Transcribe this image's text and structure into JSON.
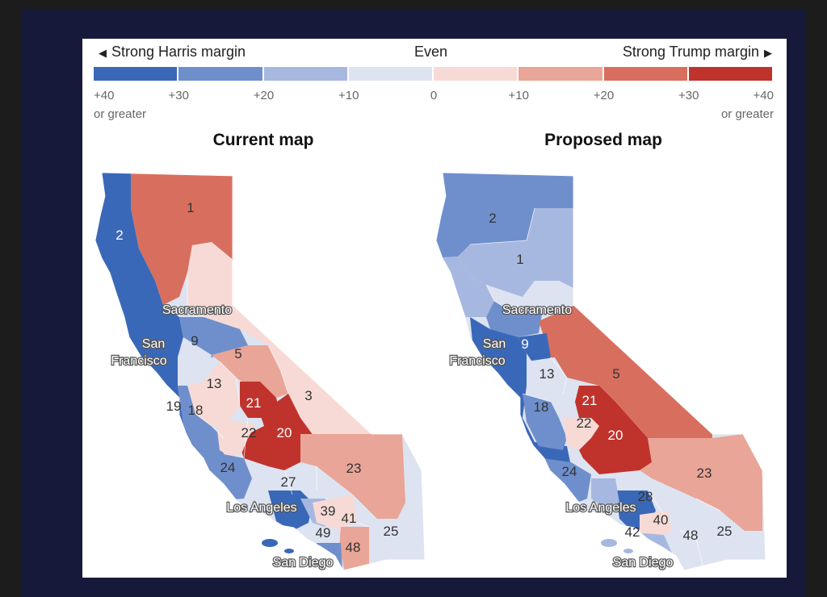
{
  "legend": {
    "left_label": "Strong Harris margin",
    "center_label": "Even",
    "right_label": "Strong Trump margin",
    "left_arrow_icon": "triangle-left-icon",
    "right_arrow_icon": "triangle-right-icon",
    "colors": [
      "#3a68b8",
      "#6f8fcc",
      "#a7b8e0",
      "#dde3f1",
      "#f7dad5",
      "#e9a597",
      "#d86f5e",
      "#c0332c"
    ],
    "ticks": [
      "+40",
      "+30",
      "+20",
      "+10",
      "0",
      "+10",
      "+20",
      "+30",
      "+40"
    ],
    "left_sub": "or greater",
    "right_sub": "or greater"
  },
  "current_map": {
    "title": "Current map",
    "cities": [
      "Sacramento",
      "San",
      "Francisco",
      "Los Angeles",
      "San Diego"
    ],
    "districts": [
      "1",
      "2",
      "3",
      "5",
      "9",
      "13",
      "18",
      "19",
      "20",
      "21",
      "22",
      "23",
      "24",
      "25",
      "27",
      "39",
      "41",
      "48",
      "49"
    ]
  },
  "proposed_map": {
    "title": "Proposed map",
    "cities": [
      "Sacramento",
      "San",
      "Francisco",
      "Los Angeles",
      "San Diego"
    ],
    "districts": [
      "1",
      "2",
      "5",
      "9",
      "13",
      "18",
      "20",
      "21",
      "22",
      "23",
      "24",
      "25",
      "28",
      "40",
      "42",
      "48"
    ]
  }
}
